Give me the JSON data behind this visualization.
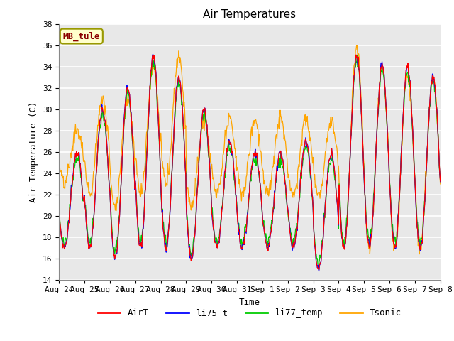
{
  "title": "Air Temperatures",
  "xlabel": "Time",
  "ylabel": "Air Temperature (C)",
  "ylim": [
    14,
    38
  ],
  "yticks": [
    14,
    16,
    18,
    20,
    22,
    24,
    26,
    28,
    30,
    32,
    34,
    36,
    38
  ],
  "x_labels": [
    "Aug 24",
    "Aug 25",
    "Aug 26",
    "Aug 27",
    "Aug 28",
    "Aug 29",
    "Aug 30",
    "Aug 31",
    "Sep 1",
    "Sep 2",
    "Sep 3",
    "Sep 4",
    "Sep 5",
    "Sep 6",
    "Sep 7",
    "Sep 8"
  ],
  "series_colors": [
    "#ff0000",
    "#0000ff",
    "#00cc00",
    "#ffa500"
  ],
  "series_names": [
    "AirT",
    "li75_t",
    "li77_temp",
    "Tsonic"
  ],
  "legend_label": "MB_tule",
  "plot_bg_color": "#e8e8e8",
  "title_fontsize": 11,
  "label_fontsize": 9,
  "tick_fontsize": 8
}
